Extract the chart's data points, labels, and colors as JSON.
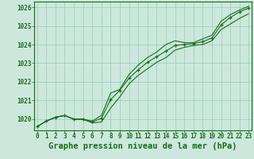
{
  "x": [
    0,
    1,
    2,
    3,
    4,
    5,
    6,
    7,
    8,
    9,
    10,
    11,
    12,
    13,
    14,
    15,
    16,
    17,
    18,
    19,
    20,
    21,
    22,
    23
  ],
  "line_main": [
    1019.6,
    1019.9,
    1020.1,
    1020.2,
    1020.0,
    1020.0,
    1019.85,
    1020.05,
    1021.05,
    1021.55,
    1022.2,
    1022.65,
    1023.05,
    1023.35,
    1023.65,
    1023.95,
    1024.0,
    1024.05,
    1024.15,
    1024.35,
    1025.05,
    1025.45,
    1025.75,
    1025.95
  ],
  "line_low": [
    1019.6,
    1019.9,
    1020.1,
    1020.2,
    1020.0,
    1020.0,
    1019.8,
    1019.85,
    1020.6,
    1021.2,
    1021.9,
    1022.35,
    1022.7,
    1023.05,
    1023.3,
    1023.7,
    1023.85,
    1023.95,
    1024.0,
    1024.2,
    1024.8,
    1025.1,
    1025.4,
    1025.65
  ],
  "line_high": [
    1019.6,
    1019.9,
    1020.1,
    1020.2,
    1020.0,
    1020.0,
    1019.9,
    1020.2,
    1021.4,
    1021.6,
    1022.4,
    1022.9,
    1023.3,
    1023.6,
    1024.0,
    1024.2,
    1024.1,
    1024.1,
    1024.3,
    1024.5,
    1025.25,
    1025.6,
    1025.85,
    1026.05
  ],
  "line_color": "#1a6b1a",
  "bg_color": "#cce8dc",
  "grid_color": "#99ccb8",
  "title": "Graphe pression niveau de la mer (hPa)",
  "ylim_min": 1019.4,
  "ylim_max": 1026.3,
  "yticks": [
    1020,
    1021,
    1022,
    1023,
    1024,
    1025,
    1026
  ],
  "xticks": [
    0,
    1,
    2,
    3,
    4,
    5,
    6,
    7,
    8,
    9,
    10,
    11,
    12,
    13,
    14,
    15,
    16,
    17,
    18,
    19,
    20,
    21,
    22,
    23
  ],
  "marker": "+",
  "marker_size": 3.5,
  "marker_edge_width": 0.9,
  "line_width": 0.8,
  "title_fontsize": 7.5,
  "tick_fontsize": 5.5
}
